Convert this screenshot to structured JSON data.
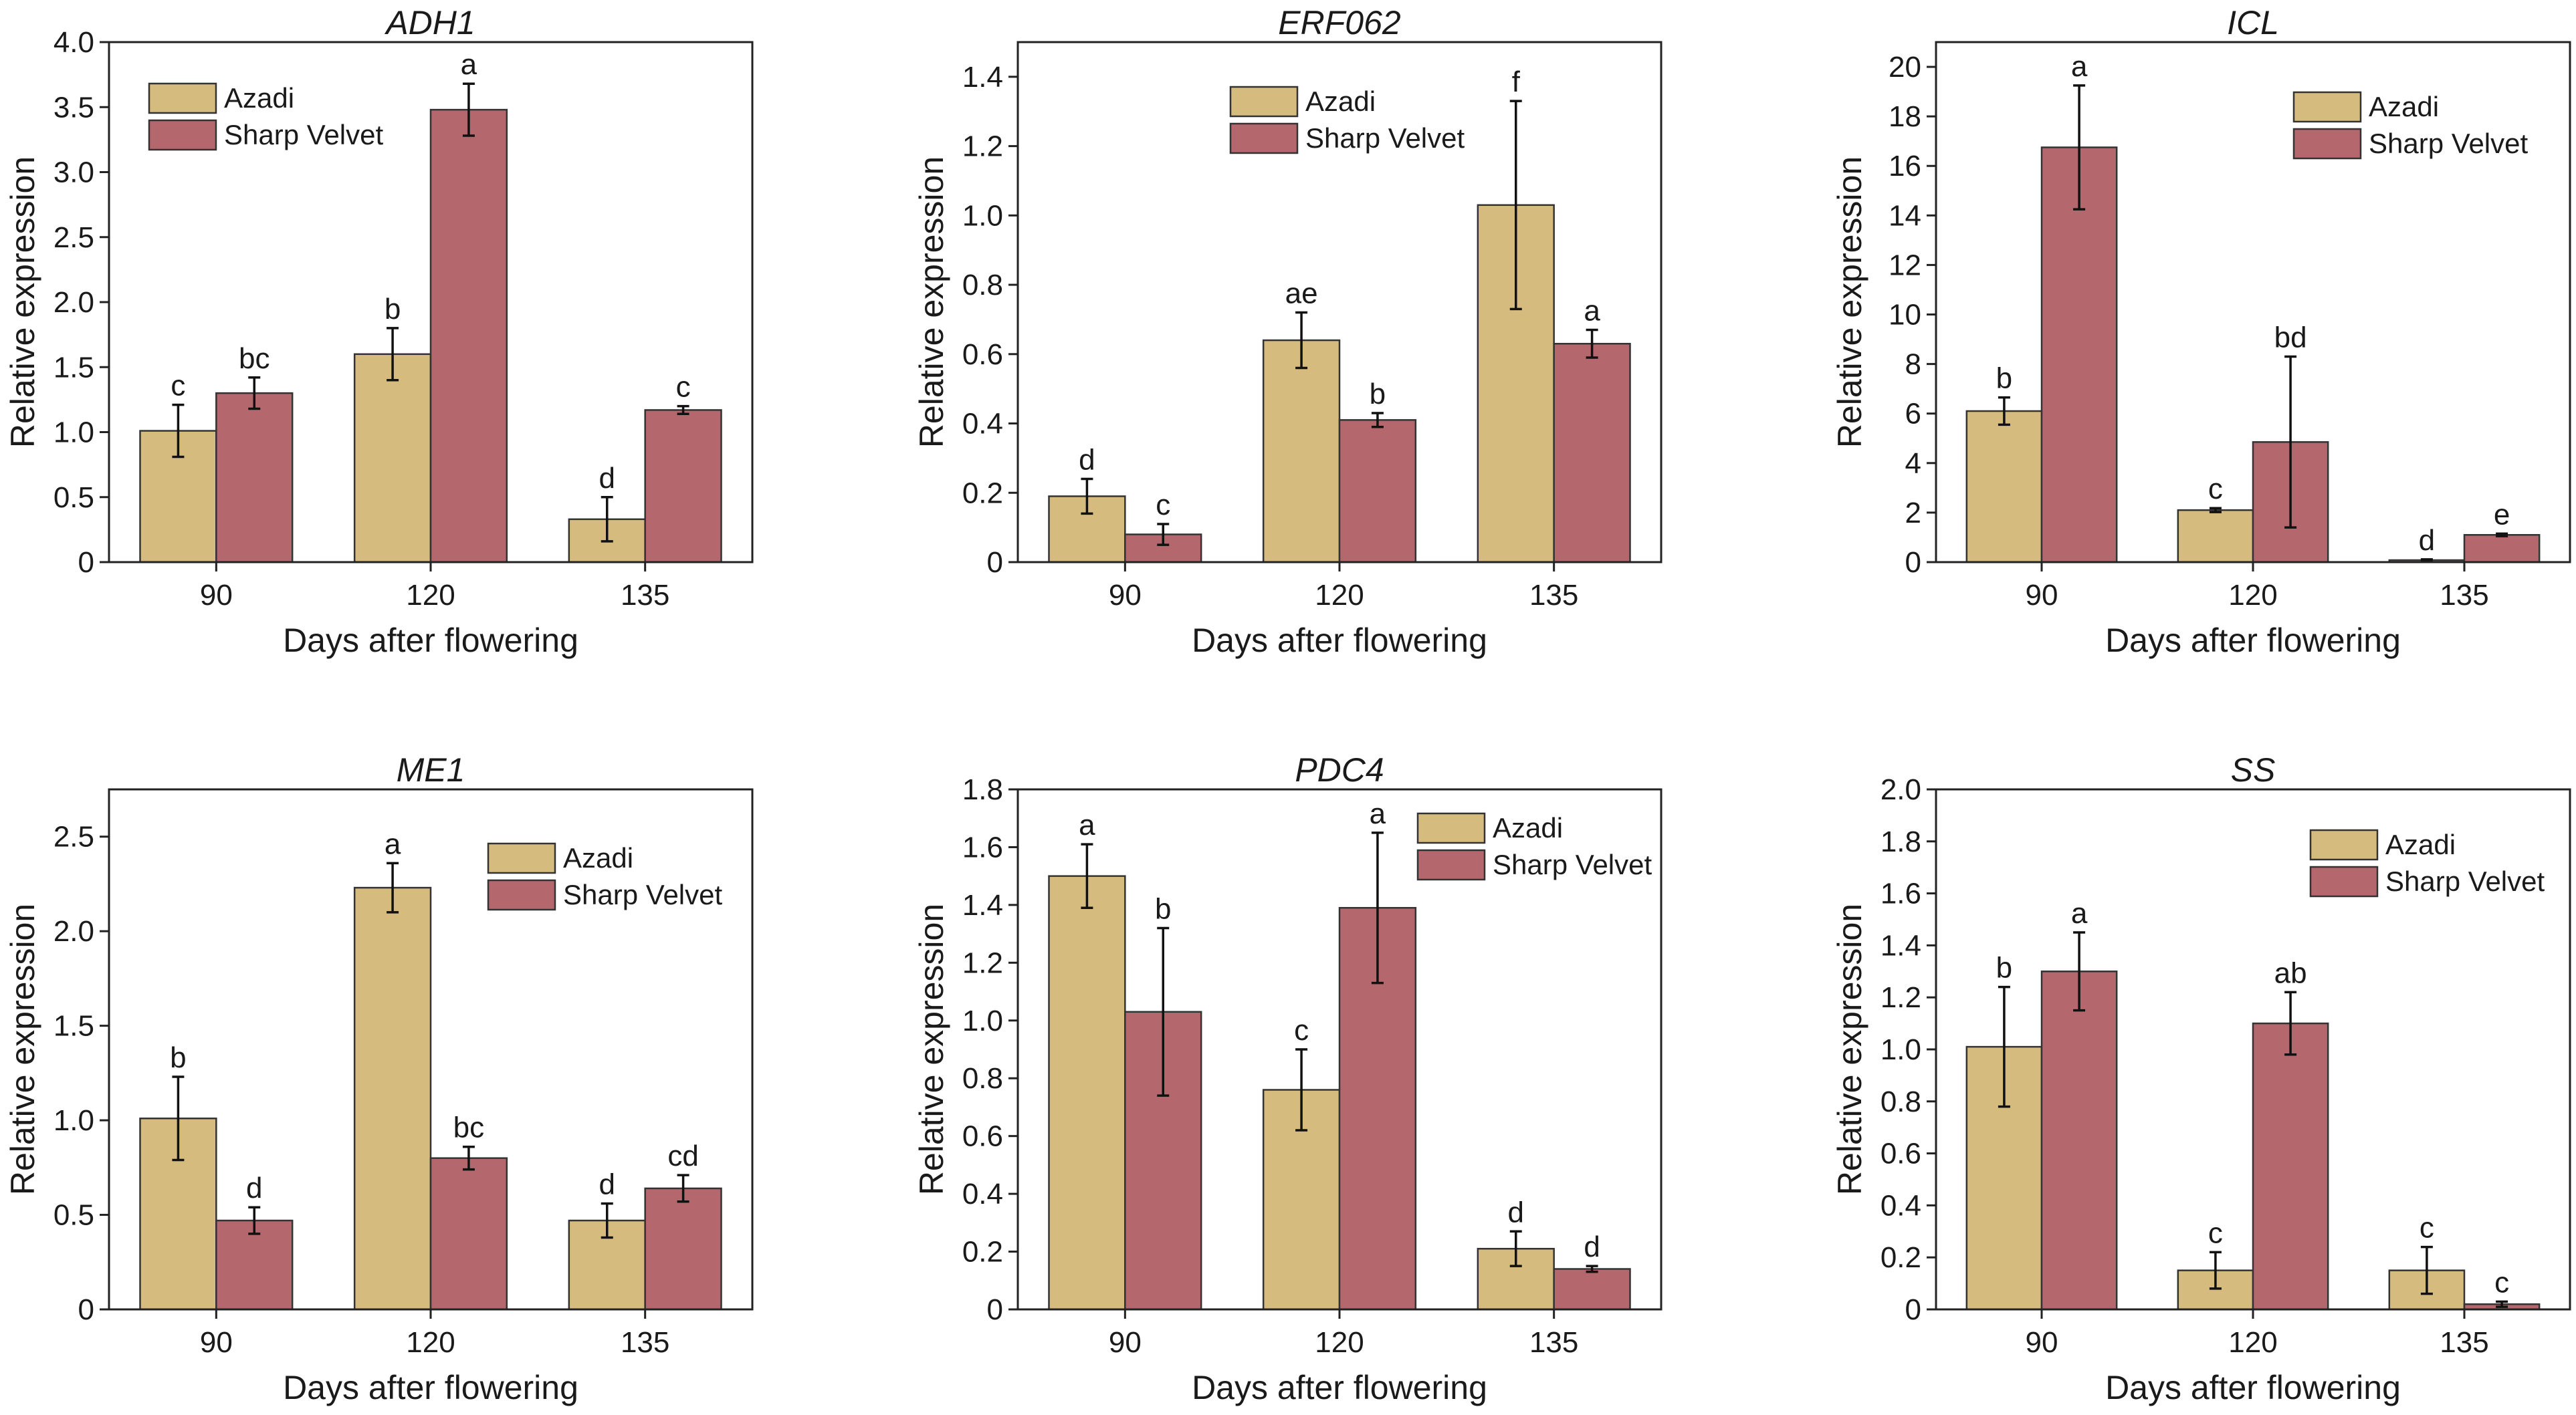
{
  "colors": {
    "Azadi": "#d6bb7f",
    "Sharp Velvet": "#b4686e"
  },
  "chart_data": [
    {
      "type": "bar",
      "title": "ADH1",
      "xlabel": "Days after flowering",
      "ylabel": "Relative expression",
      "categories": [
        "90",
        "120",
        "135"
      ],
      "ylim": [
        0,
        4.0
      ],
      "yticks": [
        0,
        0.5,
        1.0,
        1.5,
        2.0,
        2.5,
        3.0,
        3.5,
        4.0
      ],
      "ytick_labels": [
        "0",
        "0.5",
        "1.0",
        "1.5",
        "2.0",
        "2.5",
        "3.0",
        "3.5",
        "4.0"
      ],
      "legend": "top-left",
      "series": [
        {
          "name": "Azadi",
          "values": [
            1.01,
            1.6,
            0.33
          ],
          "errors": [
            0.2,
            0.2,
            0.17
          ],
          "labels": [
            "c",
            "b",
            "d"
          ]
        },
        {
          "name": "Sharp Velvet",
          "values": [
            1.3,
            3.48,
            1.17
          ],
          "errors": [
            0.12,
            0.2,
            0.03
          ],
          "labels": [
            "bc",
            "a",
            "c"
          ]
        }
      ]
    },
    {
      "type": "bar",
      "title": "ERF062",
      "xlabel": "Days after flowering",
      "ylabel": "Relative expression",
      "categories": [
        "90",
        "120",
        "135"
      ],
      "ylim": [
        0,
        1.5
      ],
      "yticks": [
        0,
        0.2,
        0.4,
        0.6,
        0.8,
        1.0,
        1.2,
        1.4
      ],
      "ytick_labels": [
        "0",
        "0.2",
        "0.4",
        "0.6",
        "0.8",
        "1.0",
        "1.2",
        "1.4"
      ],
      "legend": "top-center",
      "series": [
        {
          "name": "Azadi",
          "values": [
            0.19,
            0.64,
            1.03
          ],
          "errors": [
            0.05,
            0.08,
            0.3
          ],
          "labels": [
            "d",
            "ae",
            "f"
          ]
        },
        {
          "name": "Sharp Velvet",
          "values": [
            0.08,
            0.41,
            0.63
          ],
          "errors": [
            0.03,
            0.02,
            0.04
          ],
          "labels": [
            "c",
            "b",
            "a"
          ]
        }
      ]
    },
    {
      "type": "bar",
      "title": "ICL",
      "xlabel": "Days after flowering",
      "ylabel": "Relative expression",
      "categories": [
        "90",
        "120",
        "135"
      ],
      "ylim": [
        0,
        21
      ],
      "yticks": [
        0,
        2,
        4,
        6,
        8,
        10,
        12,
        14,
        16,
        18,
        20
      ],
      "ytick_labels": [
        "0",
        "2",
        "4",
        "6",
        "8",
        "10",
        "12",
        "14",
        "16",
        "18",
        "20"
      ],
      "legend": "top-right",
      "series": [
        {
          "name": "Azadi",
          "values": [
            6.1,
            2.1,
            0.08
          ],
          "errors": [
            0.55,
            0.08,
            0.03
          ],
          "labels": [
            "b",
            "c",
            "d"
          ]
        },
        {
          "name": "Sharp Velvet",
          "values": [
            16.75,
            4.85,
            1.1
          ],
          "errors": [
            2.5,
            3.45,
            0.05
          ],
          "labels": [
            "a",
            "bd",
            "e"
          ]
        }
      ]
    },
    {
      "type": "bar",
      "title": "ME1",
      "xlabel": "Days after flowering",
      "ylabel": "Relative expression",
      "categories": [
        "90",
        "120",
        "135"
      ],
      "ylim": [
        0,
        2.75
      ],
      "yticks": [
        0,
        0.5,
        1.0,
        1.5,
        2.0,
        2.5
      ],
      "ytick_labels": [
        "0",
        "0.5",
        "1.0",
        "1.5",
        "2.0",
        "2.5"
      ],
      "legend": "top-right",
      "series": [
        {
          "name": "Azadi",
          "values": [
            1.01,
            2.23,
            0.47
          ],
          "errors": [
            0.22,
            0.13,
            0.09
          ],
          "labels": [
            "b",
            "a",
            "d"
          ]
        },
        {
          "name": "Sharp Velvet",
          "values": [
            0.47,
            0.8,
            0.64
          ],
          "errors": [
            0.07,
            0.06,
            0.07
          ],
          "labels": [
            "d",
            "bc",
            "cd"
          ]
        }
      ]
    },
    {
      "type": "bar",
      "title": "PDC4",
      "xlabel": "Days after flowering",
      "ylabel": "Relative expression",
      "categories": [
        "90",
        "120",
        "135"
      ],
      "ylim": [
        0,
        1.8
      ],
      "yticks": [
        0,
        0.2,
        0.4,
        0.6,
        0.8,
        1.0,
        1.2,
        1.4,
        1.6,
        1.8
      ],
      "ytick_labels": [
        "0",
        "0.2",
        "0.4",
        "0.6",
        "0.8",
        "1.0",
        "1.2",
        "1.4",
        "1.6",
        "1.8"
      ],
      "legend": "top-right",
      "series": [
        {
          "name": "Azadi",
          "values": [
            1.5,
            0.76,
            0.21
          ],
          "errors": [
            0.11,
            0.14,
            0.06
          ],
          "labels": [
            "a",
            "c",
            "d"
          ]
        },
        {
          "name": "Sharp Velvet",
          "values": [
            1.03,
            1.39,
            0.14
          ],
          "errors": [
            0.29,
            0.26,
            0.01
          ],
          "labels": [
            "b",
            "a",
            "d"
          ]
        }
      ]
    },
    {
      "type": "bar",
      "title": "SS",
      "xlabel": "Days after flowering",
      "ylabel": "Relative expression",
      "categories": [
        "90",
        "120",
        "135"
      ],
      "ylim": [
        0,
        2.0
      ],
      "yticks": [
        0,
        0.2,
        0.4,
        0.6,
        0.8,
        1.0,
        1.2,
        1.4,
        1.6,
        1.8,
        2.0
      ],
      "ytick_labels": [
        "0",
        "0.2",
        "0.4",
        "0.6",
        "0.8",
        "1.0",
        "1.2",
        "1.4",
        "1.6",
        "1.8",
        "2.0"
      ],
      "legend": "top-right",
      "series": [
        {
          "name": "Azadi",
          "values": [
            1.01,
            0.15,
            0.15
          ],
          "errors": [
            0.23,
            0.07,
            0.09
          ],
          "labels": [
            "b",
            "c",
            "c"
          ]
        },
        {
          "name": "Sharp Velvet",
          "values": [
            1.3,
            1.1,
            0.02
          ],
          "errors": [
            0.15,
            0.12,
            0.01
          ],
          "labels": [
            "a",
            "ab",
            "c"
          ]
        }
      ]
    }
  ]
}
